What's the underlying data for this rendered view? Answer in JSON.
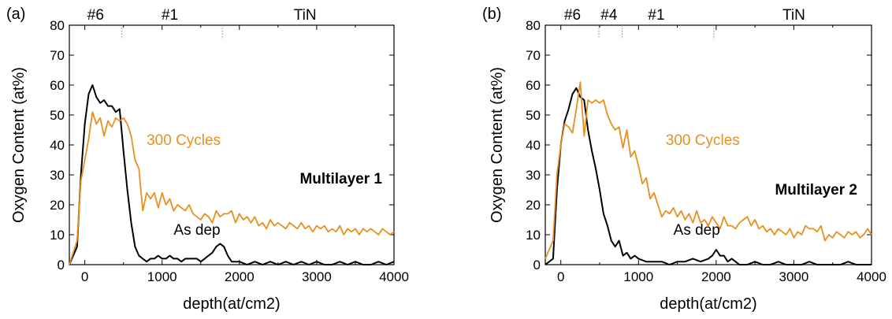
{
  "colors": {
    "as_dep": "#000000",
    "cycles": "#e8901e",
    "axis": "#000000",
    "divider": "#888888"
  },
  "chart_data": [
    {
      "type": "line",
      "panel_label": "(a)",
      "title": "Multilayer 1",
      "xlabel": "depth(at/cm2)",
      "ylabel": "Oxygen Content (at%)",
      "xlim": [
        -200,
        4000
      ],
      "ylim": [
        0,
        80
      ],
      "xticks": [
        0,
        1000,
        2000,
        3000,
        4000
      ],
      "yticks": [
        0,
        10,
        20,
        30,
        40,
        50,
        60,
        70,
        80
      ],
      "grid": false,
      "layers": [
        {
          "label": "#6",
          "center": 140
        },
        {
          "label": "#1",
          "center": 1100
        },
        {
          "label": "TiN",
          "center": 2850
        }
      ],
      "layer_boundaries": [
        480,
        1780
      ],
      "series": [
        {
          "name": "As dep",
          "color_key": "as_dep",
          "x": [
            -200,
            -100,
            -50,
            0,
            50,
            100,
            150,
            200,
            250,
            300,
            350,
            400,
            450,
            500,
            550,
            600,
            650,
            700,
            750,
            800,
            850,
            900,
            950,
            1000,
            1050,
            1100,
            1150,
            1200,
            1250,
            1300,
            1350,
            1400,
            1450,
            1500,
            1550,
            1600,
            1650,
            1700,
            1750,
            1800,
            1850,
            1900,
            1950,
            2000,
            2100,
            2200,
            2300,
            2400,
            2500,
            2600,
            2700,
            2800,
            2900,
            3000,
            3100,
            3200,
            3300,
            3400,
            3500,
            3600,
            3700,
            3800,
            3900,
            4000
          ],
          "y": [
            0,
            6,
            30,
            47,
            57,
            60,
            56,
            54,
            55,
            53,
            53,
            51,
            52,
            38,
            25,
            14,
            6,
            3,
            2,
            1,
            2,
            2,
            3,
            2,
            2,
            3,
            2,
            2,
            1,
            2,
            2,
            2,
            2,
            1,
            2,
            3,
            4,
            6,
            7,
            6,
            3,
            1,
            1,
            1,
            0,
            1,
            0,
            1,
            0,
            1,
            0,
            1,
            0,
            1,
            0,
            0,
            1,
            0,
            1,
            0,
            0,
            1,
            0,
            1
          ]
        },
        {
          "name": "300 Cycles",
          "color_key": "cycles",
          "x": [
            -200,
            -100,
            -50,
            0,
            50,
            100,
            150,
            200,
            250,
            300,
            350,
            400,
            450,
            500,
            550,
            600,
            650,
            700,
            750,
            800,
            850,
            900,
            950,
            1000,
            1050,
            1100,
            1150,
            1200,
            1250,
            1300,
            1350,
            1400,
            1450,
            1500,
            1550,
            1600,
            1650,
            1700,
            1750,
            1800,
            1850,
            1900,
            1950,
            2000,
            2050,
            2100,
            2150,
            2200,
            2250,
            2300,
            2350,
            2400,
            2450,
            2500,
            2550,
            2600,
            2650,
            2700,
            2750,
            2800,
            2850,
            2900,
            2950,
            3000,
            3050,
            3100,
            3150,
            3200,
            3250,
            3300,
            3350,
            3400,
            3450,
            3500,
            3550,
            3600,
            3650,
            3700,
            3750,
            3800,
            3850,
            3900,
            3950,
            4000
          ],
          "y": [
            0,
            8,
            28,
            35,
            42,
            51,
            47,
            49,
            43,
            48,
            46,
            49,
            48,
            49,
            47,
            43,
            35,
            32,
            18,
            24,
            22,
            24,
            19,
            24,
            20,
            22,
            18,
            20,
            19,
            18,
            20,
            17,
            16,
            15,
            17,
            16,
            14,
            18,
            16,
            17,
            17,
            18,
            14,
            17,
            15,
            16,
            14,
            16,
            13,
            14,
            12,
            15,
            13,
            14,
            13,
            12,
            14,
            13,
            12,
            14,
            12,
            13,
            11,
            13,
            12,
            13,
            11,
            12,
            11,
            13,
            10,
            12,
            11,
            12,
            10,
            12,
            11,
            12,
            11,
            10,
            12,
            11,
            10,
            11
          ]
        }
      ],
      "annotations": [
        {
          "text": "300 Cycles",
          "x": 800,
          "y": 40,
          "color_key": "cycles"
        },
        {
          "text": "As dep",
          "x": 1150,
          "y": 10,
          "color_key": "as_dep"
        }
      ]
    },
    {
      "type": "line",
      "panel_label": "(b)",
      "title": "Multilayer 2",
      "xlabel": "depth(at/cm2)",
      "ylabel": "Oxygen Content (at%)",
      "xlim": [
        -200,
        4000
      ],
      "ylim": [
        0,
        80
      ],
      "xticks": [
        0,
        1000,
        2000,
        3000,
        4000
      ],
      "yticks": [
        0,
        10,
        20,
        30,
        40,
        50,
        60,
        70,
        80
      ],
      "grid": false,
      "layers": [
        {
          "label": "#6",
          "center": 150
        },
        {
          "label": "#4",
          "center": 620
        },
        {
          "label": "#1",
          "center": 1230
        },
        {
          "label": "TiN",
          "center": 3000
        }
      ],
      "layer_boundaries": [
        490,
        790,
        1970
      ],
      "series": [
        {
          "name": "As dep",
          "color_key": "as_dep",
          "x": [
            -200,
            -100,
            -50,
            0,
            50,
            100,
            150,
            200,
            250,
            300,
            350,
            400,
            450,
            500,
            550,
            600,
            650,
            700,
            750,
            800,
            850,
            900,
            950,
            1000,
            1100,
            1200,
            1300,
            1400,
            1500,
            1600,
            1700,
            1800,
            1900,
            1950,
            2000,
            2050,
            2100,
            2150,
            2200,
            2250,
            2300,
            2400,
            2500,
            2600,
            2700,
            2800,
            2900,
            3000,
            3100,
            3200,
            3300,
            3400,
            3500,
            3600,
            3700,
            3800,
            3900,
            4000
          ],
          "y": [
            0,
            2,
            25,
            40,
            48,
            52,
            57,
            59,
            56,
            55,
            45,
            38,
            32,
            25,
            17,
            13,
            8,
            6,
            8,
            3,
            4,
            2,
            3,
            2,
            1,
            1,
            1,
            0,
            1,
            1,
            2,
            1,
            2,
            3,
            5,
            3,
            3,
            1,
            2,
            1,
            0,
            0,
            1,
            0,
            0,
            1,
            0,
            0,
            0,
            1,
            0,
            0,
            0,
            0,
            1,
            0,
            0,
            0
          ]
        },
        {
          "name": "300 Cycles",
          "color_key": "cycles",
          "x": [
            -200,
            -100,
            -50,
            0,
            50,
            100,
            150,
            200,
            250,
            300,
            350,
            400,
            450,
            500,
            550,
            600,
            650,
            700,
            750,
            800,
            850,
            900,
            950,
            1000,
            1050,
            1100,
            1150,
            1200,
            1250,
            1300,
            1350,
            1400,
            1450,
            1500,
            1550,
            1600,
            1650,
            1700,
            1750,
            1800,
            1850,
            1900,
            1950,
            2000,
            2050,
            2100,
            2150,
            2200,
            2250,
            2300,
            2350,
            2400,
            2450,
            2500,
            2550,
            2600,
            2650,
            2700,
            2750,
            2800,
            2850,
            2900,
            2950,
            3000,
            3050,
            3100,
            3150,
            3200,
            3250,
            3300,
            3350,
            3400,
            3450,
            3500,
            3550,
            3600,
            3650,
            3700,
            3750,
            3800,
            3850,
            3900,
            3950,
            4000
          ],
          "y": [
            2,
            8,
            30,
            40,
            47,
            46,
            44,
            52,
            61,
            43,
            55,
            54,
            55,
            54,
            55,
            50,
            47,
            45,
            46,
            39,
            45,
            36,
            38,
            33,
            27,
            29,
            22,
            24,
            20,
            16,
            18,
            17,
            19,
            16,
            18,
            15,
            17,
            14,
            18,
            14,
            15,
            13,
            16,
            14,
            12,
            16,
            13,
            13,
            12,
            14,
            15,
            16,
            13,
            15,
            12,
            13,
            11,
            12,
            10,
            12,
            11,
            10,
            12,
            9,
            11,
            10,
            13,
            12,
            12,
            11,
            13,
            8,
            10,
            9,
            11,
            10,
            9,
            11,
            10,
            11,
            9,
            10,
            12,
            10
          ]
        }
      ],
      "annotations": [
        {
          "text": "300 Cycles",
          "x": 1350,
          "y": 40,
          "color_key": "cycles"
        },
        {
          "text": "As dep",
          "x": 1450,
          "y": 10,
          "color_key": "as_dep"
        }
      ]
    }
  ]
}
